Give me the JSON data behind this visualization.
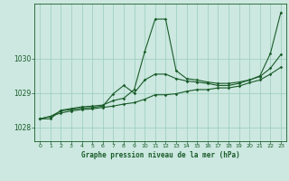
{
  "title": "Graphe pression niveau de la mer (hPa)",
  "background_color": "#cce8e0",
  "grid_color": "#99ccbb",
  "line_color": "#1a5c2a",
  "xlim": [
    -0.5,
    23.5
  ],
  "ylim": [
    1027.6,
    1031.6
  ],
  "yticks": [
    1028,
    1029,
    1030
  ],
  "xticks": [
    0,
    1,
    2,
    3,
    4,
    5,
    6,
    7,
    8,
    9,
    10,
    11,
    12,
    13,
    14,
    15,
    16,
    17,
    18,
    19,
    20,
    21,
    22,
    23
  ],
  "series1_x": [
    0,
    1,
    2,
    3,
    4,
    5,
    6,
    7,
    8,
    9,
    10,
    11,
    12,
    13,
    14,
    15,
    16,
    17,
    18,
    19,
    20,
    21,
    22,
    23
  ],
  "series1_y": [
    1028.25,
    1028.25,
    1028.5,
    1028.55,
    1028.6,
    1028.62,
    1028.65,
    1028.78,
    1028.85,
    1029.1,
    1030.2,
    1031.15,
    1031.15,
    1029.65,
    1029.42,
    1029.38,
    1029.32,
    1029.28,
    1029.28,
    1029.32,
    1029.38,
    1029.5,
    1030.15,
    1031.35
  ],
  "series2_x": [
    0,
    1,
    2,
    3,
    4,
    5,
    6,
    7,
    8,
    9,
    10,
    11,
    12,
    13,
    14,
    15,
    16,
    17,
    18,
    19,
    20,
    21,
    22,
    23
  ],
  "series2_y": [
    1028.25,
    1028.32,
    1028.48,
    1028.52,
    1028.56,
    1028.58,
    1028.62,
    1028.98,
    1029.22,
    1029.0,
    1029.38,
    1029.55,
    1029.55,
    1029.42,
    1029.35,
    1029.32,
    1029.28,
    1029.22,
    1029.22,
    1029.28,
    1029.38,
    1029.48,
    1029.72,
    1030.12
  ],
  "series3_x": [
    0,
    1,
    2,
    3,
    4,
    5,
    6,
    7,
    8,
    9,
    10,
    11,
    12,
    13,
    14,
    15,
    16,
    17,
    18,
    19,
    20,
    21,
    22,
    23
  ],
  "series3_y": [
    1028.25,
    1028.32,
    1028.42,
    1028.48,
    1028.52,
    1028.54,
    1028.58,
    1028.62,
    1028.68,
    1028.72,
    1028.82,
    1028.95,
    1028.95,
    1028.98,
    1029.05,
    1029.1,
    1029.1,
    1029.15,
    1029.15,
    1029.2,
    1029.3,
    1029.38,
    1029.55,
    1029.75
  ]
}
